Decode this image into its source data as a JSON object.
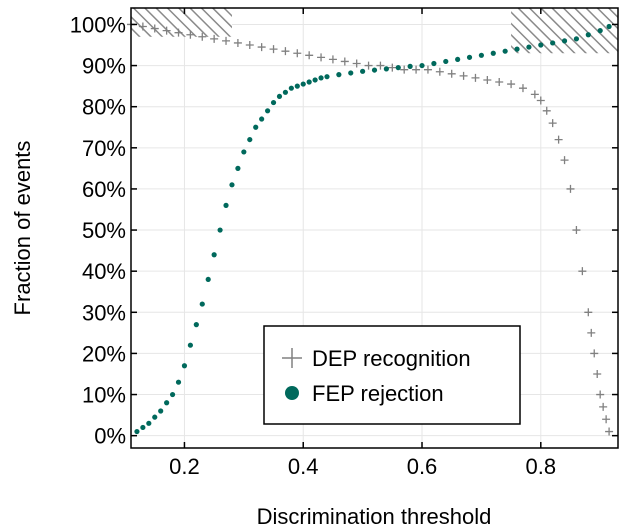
{
  "chart_data": {
    "type": "scatter",
    "xlabel": "Discrimination threshold",
    "ylabel": "Fraction of events",
    "xlim": [
      0.11,
      0.93
    ],
    "ylim": [
      -0.03,
      1.04
    ],
    "xticks": [
      0.2,
      0.4,
      0.6,
      0.8
    ],
    "xtick_labels": [
      "0.2",
      "0.4",
      "0.6",
      "0.8"
    ],
    "yticks": [
      0,
      0.1,
      0.2,
      0.3,
      0.4,
      0.5,
      0.6,
      0.7,
      0.8,
      0.9,
      1.0
    ],
    "ytick_labels": [
      "0%",
      "10%",
      "20%",
      "30%",
      "40%",
      "50%",
      "60%",
      "70%",
      "80%",
      "90%",
      "100%"
    ],
    "grid": true,
    "legend_position": "bottom-center",
    "shaded_regions": [
      {
        "x": [
          0.11,
          0.28
        ],
        "y": [
          0.97,
          1.04
        ],
        "pattern": "hatched"
      },
      {
        "x": [
          0.75,
          0.93
        ],
        "y": [
          0.93,
          1.04
        ],
        "pattern": "hatched"
      }
    ],
    "series": [
      {
        "name": "DEP recognition",
        "marker": "plus",
        "color": "#808080",
        "x": [
          0.11,
          0.13,
          0.15,
          0.17,
          0.19,
          0.21,
          0.23,
          0.25,
          0.27,
          0.29,
          0.31,
          0.33,
          0.35,
          0.37,
          0.39,
          0.41,
          0.43,
          0.45,
          0.47,
          0.49,
          0.51,
          0.53,
          0.55,
          0.57,
          0.59,
          0.61,
          0.63,
          0.65,
          0.67,
          0.69,
          0.71,
          0.73,
          0.75,
          0.77,
          0.79,
          0.8,
          0.81,
          0.82,
          0.83,
          0.84,
          0.85,
          0.86,
          0.87,
          0.88,
          0.885,
          0.89,
          0.895,
          0.9,
          0.905,
          0.91,
          0.915
        ],
        "y": [
          1.0,
          0.995,
          0.99,
          0.985,
          0.98,
          0.975,
          0.97,
          0.965,
          0.96,
          0.955,
          0.95,
          0.945,
          0.94,
          0.935,
          0.93,
          0.925,
          0.92,
          0.915,
          0.91,
          0.905,
          0.9,
          0.9,
          0.895,
          0.89,
          0.89,
          0.89,
          0.885,
          0.88,
          0.875,
          0.87,
          0.865,
          0.86,
          0.855,
          0.845,
          0.83,
          0.815,
          0.79,
          0.76,
          0.72,
          0.67,
          0.6,
          0.5,
          0.4,
          0.3,
          0.25,
          0.2,
          0.15,
          0.1,
          0.07,
          0.04,
          0.01
        ]
      },
      {
        "name": "FEP rejection",
        "marker": "circle",
        "color": "#00695c",
        "x": [
          0.12,
          0.13,
          0.14,
          0.15,
          0.16,
          0.17,
          0.18,
          0.19,
          0.2,
          0.21,
          0.22,
          0.23,
          0.24,
          0.25,
          0.26,
          0.27,
          0.28,
          0.29,
          0.3,
          0.31,
          0.32,
          0.33,
          0.34,
          0.35,
          0.36,
          0.37,
          0.38,
          0.39,
          0.4,
          0.41,
          0.42,
          0.43,
          0.44,
          0.46,
          0.48,
          0.5,
          0.52,
          0.54,
          0.56,
          0.58,
          0.6,
          0.62,
          0.64,
          0.66,
          0.68,
          0.7,
          0.72,
          0.74,
          0.76,
          0.78,
          0.8,
          0.82,
          0.84,
          0.86,
          0.88,
          0.9,
          0.915
        ],
        "y": [
          0.01,
          0.02,
          0.03,
          0.045,
          0.06,
          0.08,
          0.1,
          0.13,
          0.17,
          0.22,
          0.27,
          0.32,
          0.38,
          0.44,
          0.5,
          0.56,
          0.61,
          0.65,
          0.69,
          0.72,
          0.75,
          0.77,
          0.79,
          0.81,
          0.825,
          0.835,
          0.845,
          0.85,
          0.855,
          0.86,
          0.865,
          0.87,
          0.873,
          0.878,
          0.882,
          0.886,
          0.889,
          0.892,
          0.895,
          0.898,
          0.9,
          0.905,
          0.91,
          0.915,
          0.92,
          0.925,
          0.93,
          0.935,
          0.94,
          0.945,
          0.95,
          0.955,
          0.96,
          0.965,
          0.975,
          0.985,
          0.995
        ]
      }
    ]
  }
}
